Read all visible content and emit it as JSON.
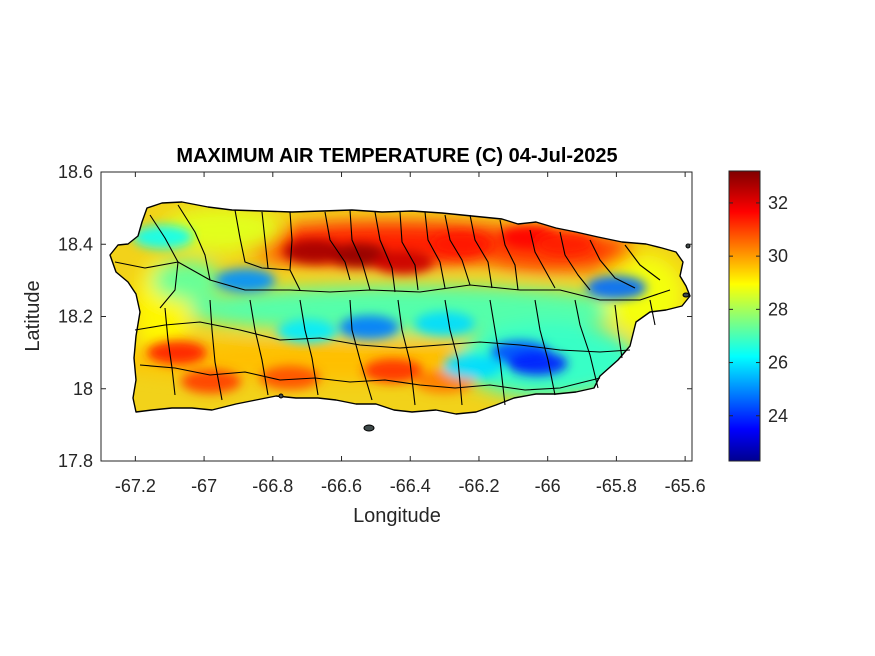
{
  "chart_data": {
    "type": "heatmap",
    "title": "MAXIMUM AIR TEMPERATURE (C) 04-Jul-2025",
    "xlabel": "Longitude",
    "ylabel": "Latitude",
    "xlim": [
      -67.3,
      -65.58
    ],
    "ylim": [
      17.8,
      18.6
    ],
    "xticks": [
      {
        "value": -67.2,
        "label": "-67.2"
      },
      {
        "value": -67.0,
        "label": "-67"
      },
      {
        "value": -66.8,
        "label": "-66.8"
      },
      {
        "value": -66.6,
        "label": "-66.6"
      },
      {
        "value": -66.4,
        "label": "-66.4"
      },
      {
        "value": -66.2,
        "label": "-66.2"
      },
      {
        "value": -66.0,
        "label": "-66"
      },
      {
        "value": -65.8,
        "label": "-65.8"
      },
      {
        "value": -65.6,
        "label": "-65.6"
      }
    ],
    "yticks": [
      {
        "value": 17.8,
        "label": "17.8"
      },
      {
        "value": 18.0,
        "label": "18"
      },
      {
        "value": 18.2,
        "label": "18.2"
      },
      {
        "value": 18.4,
        "label": "18.4"
      },
      {
        "value": 18.6,
        "label": "18.6"
      }
    ],
    "colorbar": {
      "colormap": "jet",
      "range": [
        22.3,
        33.2
      ],
      "ticks": [
        {
          "value": 24,
          "label": "24"
        },
        {
          "value": 26,
          "label": "26"
        },
        {
          "value": 28,
          "label": "28"
        },
        {
          "value": 30,
          "label": "30"
        },
        {
          "value": 32,
          "label": "32"
        }
      ]
    },
    "hotspots": [
      {
        "lon": -66.55,
        "lat": 18.37,
        "temp": 33.0
      },
      {
        "lon": -66.68,
        "lat": 18.38,
        "temp": 32.8
      },
      {
        "lon": -66.42,
        "lat": 18.35,
        "temp": 32.4
      },
      {
        "lon": -66.25,
        "lat": 18.4,
        "temp": 31.6
      },
      {
        "lon": -66.05,
        "lat": 18.42,
        "temp": 31.8
      },
      {
        "lon": -65.95,
        "lat": 18.4,
        "temp": 31.5
      },
      {
        "lon": -67.08,
        "lat": 18.1,
        "temp": 31.5
      },
      {
        "lon": -66.98,
        "lat": 18.02,
        "temp": 31.2
      },
      {
        "lon": -66.75,
        "lat": 18.03,
        "temp": 31.0
      },
      {
        "lon": -66.45,
        "lat": 18.05,
        "temp": 31.3
      },
      {
        "lon": -66.3,
        "lat": 18.02,
        "temp": 30.5
      }
    ],
    "coldspots": [
      {
        "lon": -66.52,
        "lat": 18.17,
        "temp": 25.0
      },
      {
        "lon": -66.3,
        "lat": 18.18,
        "temp": 26.0
      },
      {
        "lon": -66.88,
        "lat": 18.3,
        "temp": 25.2
      },
      {
        "lon": -66.08,
        "lat": 18.1,
        "temp": 24.5
      },
      {
        "lon": -66.03,
        "lat": 18.07,
        "temp": 24.0
      },
      {
        "lon": -65.8,
        "lat": 18.28,
        "temp": 24.8
      },
      {
        "lon": -67.12,
        "lat": 18.42,
        "temp": 26.5
      },
      {
        "lon": -66.22,
        "lat": 18.06,
        "temp": 26.0
      },
      {
        "lon": -66.7,
        "lat": 18.16,
        "temp": 26.2
      }
    ]
  }
}
